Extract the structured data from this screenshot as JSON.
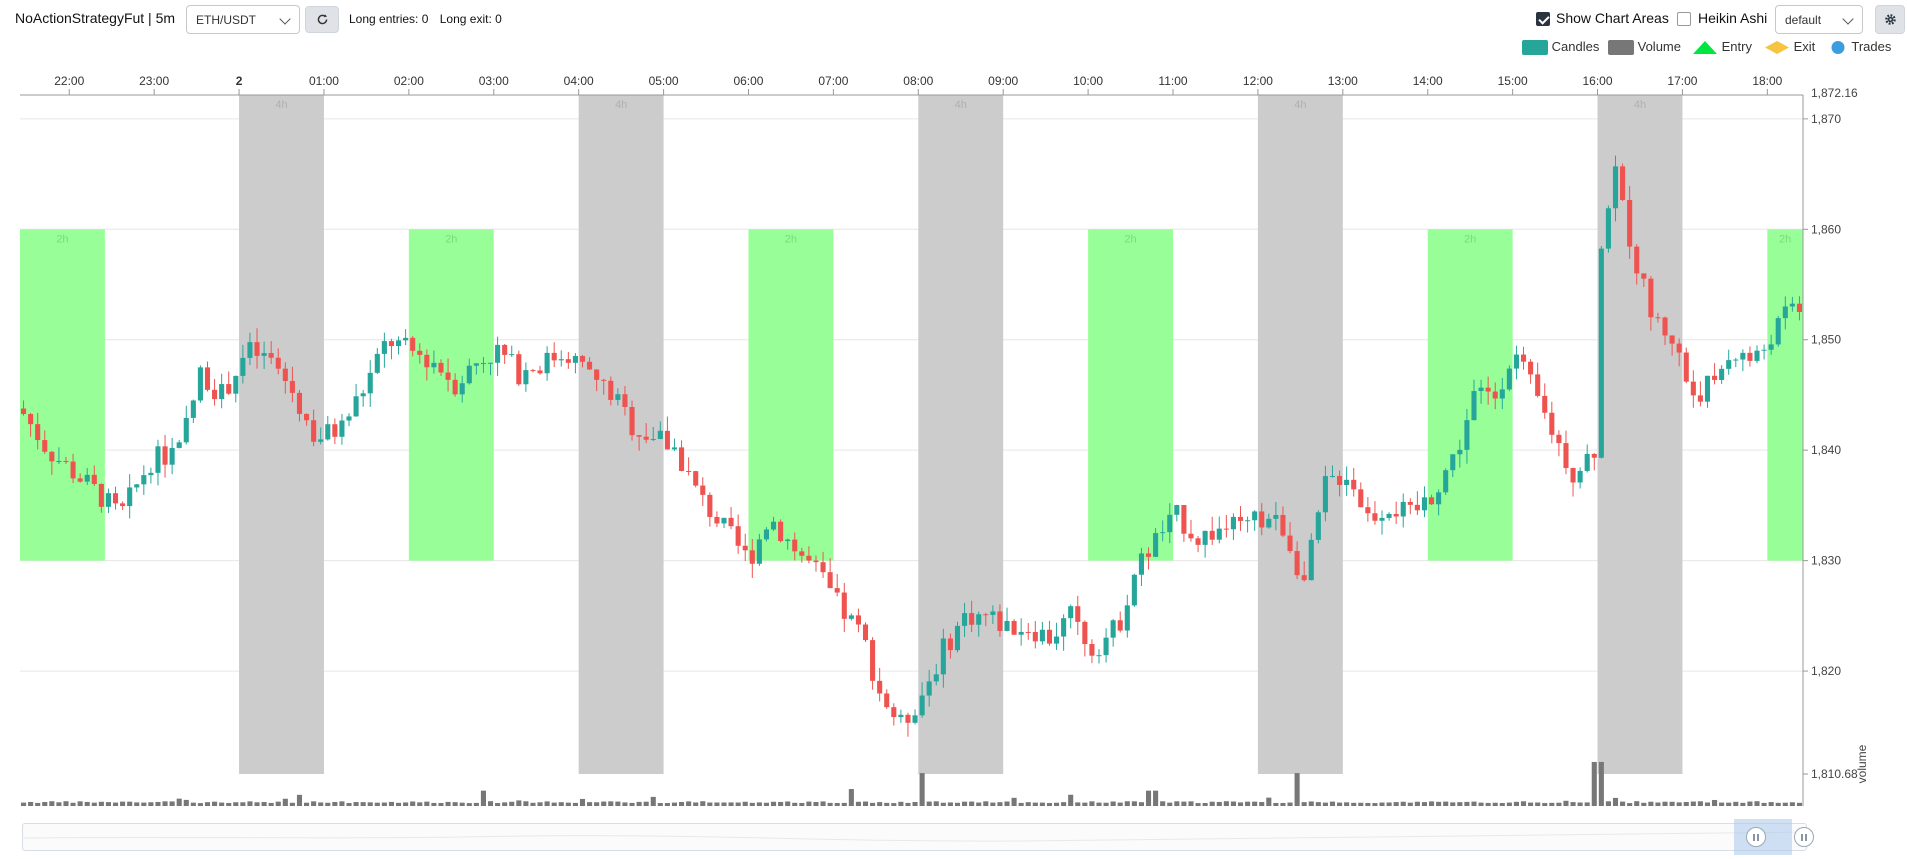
{
  "toolbar": {
    "title": "NoActionStrategyFut | 5m",
    "pair": "ETH/USDT",
    "long_entries": "Long entries: 0",
    "long_exit": "Long exit: 0",
    "show_chart_areas": "Show Chart Areas",
    "show_chart_areas_checked": true,
    "heikin_ashi": "Heikin Ashi",
    "heikin_ashi_checked": false,
    "theme": "default",
    "icons": [
      "chevron-down-icon",
      "refresh-icon",
      "gear-icon"
    ]
  },
  "legend": {
    "candles": "Candles",
    "volume": "Volume",
    "entry": "Entry",
    "exit": "Exit",
    "trades": "Trades"
  },
  "colors": {
    "candle_up": "#26a69a",
    "candle_down": "#ef5350",
    "volume": "#777777",
    "area_2h": "#98ff98",
    "area_4h": "#cccccc",
    "entry": "#00e640",
    "exit": "#f5c542",
    "trades": "#3b9ddd"
  },
  "chart_data": {
    "type": "candlestick",
    "timeframe": "5m",
    "x_ticks": [
      "22:00",
      "23:00",
      "2",
      "01:00",
      "02:00",
      "03:00",
      "04:00",
      "05:00",
      "06:00",
      "07:00",
      "08:00",
      "09:00",
      "10:00",
      "11:00",
      "12:00",
      "13:00",
      "14:00",
      "15:00",
      "16:00",
      "17:00",
      "18:00"
    ],
    "y_ticks": [
      1870,
      1860,
      1850,
      1840,
      1830,
      1820
    ],
    "y_range_labels": [
      "1,872.16",
      "1,810.68"
    ],
    "ylim": [
      1810.68,
      1872.16
    ],
    "y_tick_labels": [
      "1,870",
      "1,860",
      "1,850",
      "1,840",
      "1,830",
      "1,820"
    ],
    "volume_axis_label": "volume",
    "areas": [
      {
        "label": "2h",
        "kind": "2h",
        "from": 21.42,
        "to": 22.42,
        "low": 1830,
        "high": 1860
      },
      {
        "label": "4h",
        "kind": "4h",
        "from": 24.0,
        "to": 25.0,
        "low": 1810.68,
        "high": 1872.16
      },
      {
        "label": "2h",
        "kind": "2h",
        "from": 26.0,
        "to": 27.0,
        "low": 1830,
        "high": 1860
      },
      {
        "label": "4h",
        "kind": "4h",
        "from": 28.0,
        "to": 29.0,
        "low": 1810.68,
        "high": 1872.16
      },
      {
        "label": "2h",
        "kind": "2h",
        "from": 30.0,
        "to": 31.0,
        "low": 1830,
        "high": 1860
      },
      {
        "label": "4h",
        "kind": "4h",
        "from": 32.0,
        "to": 33.0,
        "low": 1810.68,
        "high": 1872.16
      },
      {
        "label": "2h",
        "kind": "2h",
        "from": 34.0,
        "to": 35.0,
        "low": 1830,
        "high": 1860
      },
      {
        "label": "4h",
        "kind": "4h",
        "from": 36.0,
        "to": 37.0,
        "low": 1810.68,
        "high": 1872.16
      },
      {
        "label": "2h",
        "kind": "2h",
        "from": 38.0,
        "to": 39.0,
        "low": 1830,
        "high": 1860
      },
      {
        "label": "4h",
        "kind": "4h",
        "from": 40.0,
        "to": 41.0,
        "low": 1810.68,
        "high": 1872.16
      },
      {
        "label": "2h",
        "kind": "2h",
        "from": 42.0,
        "to": 42.42,
        "low": 1830,
        "high": 1860
      }
    ],
    "price_path": [
      [
        21.0,
        1846
      ],
      [
        21.4,
        1844
      ],
      [
        21.75,
        1840
      ],
      [
        22.05,
        1838
      ],
      [
        22.35,
        1836
      ],
      [
        22.6,
        1834
      ],
      [
        22.95,
        1839
      ],
      [
        23.3,
        1840
      ],
      [
        23.55,
        1847
      ],
      [
        23.8,
        1845
      ],
      [
        24.1,
        1849
      ],
      [
        24.4,
        1848
      ],
      [
        24.65,
        1845
      ],
      [
        24.9,
        1841
      ],
      [
        25.2,
        1842
      ],
      [
        25.5,
        1846
      ],
      [
        25.75,
        1850
      ],
      [
        26.0,
        1849
      ],
      [
        26.3,
        1848
      ],
      [
        26.55,
        1846
      ],
      [
        26.8,
        1848
      ],
      [
        27.05,
        1849
      ],
      [
        27.3,
        1847
      ],
      [
        27.6,
        1848
      ],
      [
        27.85,
        1849
      ],
      [
        28.1,
        1847
      ],
      [
        28.4,
        1845
      ],
      [
        28.65,
        1842
      ],
      [
        28.95,
        1841
      ],
      [
        29.15,
        1840
      ],
      [
        29.4,
        1836
      ],
      [
        29.7,
        1833
      ],
      [
        30.0,
        1830
      ],
      [
        30.25,
        1834
      ],
      [
        30.55,
        1831
      ],
      [
        30.8,
        1829
      ],
      [
        31.05,
        1826
      ],
      [
        31.35,
        1823
      ],
      [
        31.55,
        1818
      ],
      [
        31.8,
        1815
      ],
      [
        32.05,
        1818
      ],
      [
        32.3,
        1822
      ],
      [
        32.55,
        1825
      ],
      [
        32.8,
        1825
      ],
      [
        33.05,
        1824
      ],
      [
        33.3,
        1824
      ],
      [
        33.55,
        1823
      ],
      [
        33.8,
        1825
      ],
      [
        34.05,
        1822
      ],
      [
        34.35,
        1824
      ],
      [
        34.55,
        1829
      ],
      [
        34.8,
        1832
      ],
      [
        35.05,
        1834
      ],
      [
        35.3,
        1832
      ],
      [
        35.6,
        1833
      ],
      [
        35.85,
        1833
      ],
      [
        36.1,
        1834
      ],
      [
        36.3,
        1833
      ],
      [
        36.55,
        1828
      ],
      [
        36.8,
        1837
      ],
      [
        37.05,
        1838
      ],
      [
        37.3,
        1834
      ],
      [
        37.55,
        1835
      ],
      [
        37.8,
        1834
      ],
      [
        38.05,
        1836
      ],
      [
        38.35,
        1840
      ],
      [
        38.55,
        1845
      ],
      [
        38.8,
        1845
      ],
      [
        39.0,
        1849
      ],
      [
        39.2,
        1846
      ],
      [
        39.45,
        1842
      ],
      [
        39.7,
        1838
      ],
      [
        39.95,
        1840
      ],
      [
        40.0,
        1841
      ],
      [
        40.05,
        1860
      ],
      [
        40.2,
        1865
      ],
      [
        40.45,
        1857
      ],
      [
        40.65,
        1852
      ],
      [
        40.9,
        1850
      ],
      [
        41.1,
        1845
      ],
      [
        41.35,
        1846
      ],
      [
        41.6,
        1849
      ],
      [
        41.85,
        1848
      ],
      [
        42.1,
        1851
      ],
      [
        42.3,
        1853
      ]
    ],
    "volume_spikes": [
      [
        32.05,
        1.0
      ],
      [
        36.45,
        1.0
      ],
      [
        40.0,
        1.35
      ],
      [
        34.75,
        0.45
      ],
      [
        31.2,
        0.5
      ],
      [
        26.9,
        0.45
      ]
    ],
    "time_range": [
      21.42,
      42.42
    ]
  }
}
